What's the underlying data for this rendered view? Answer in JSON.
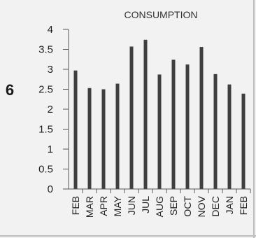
{
  "annotation": "6",
  "chart_data": {
    "type": "bar",
    "title": "CONSUMPTION",
    "xlabel": "",
    "ylabel": "",
    "categories": [
      "FEB",
      "MAR",
      "APR",
      "MAY",
      "JUN",
      "JUL",
      "AUG",
      "SEP",
      "OCT",
      "NOV",
      "DEC",
      "JAN",
      "FEB"
    ],
    "values": [
      2.97,
      2.53,
      2.5,
      2.64,
      3.57,
      3.74,
      2.87,
      3.24,
      3.12,
      3.56,
      2.88,
      2.62,
      2.39
    ],
    "ylim": [
      0,
      4
    ],
    "yticks": [
      "0",
      "0.5",
      "1",
      "1.5",
      "2",
      "2.5",
      "3",
      "3.5",
      "4"
    ],
    "grid": false,
    "legend": "none",
    "colors": {
      "bar": "#3f3f3f",
      "axis": "#555555",
      "frame": "#bdbdbd",
      "background": "#f2f2f2"
    }
  }
}
